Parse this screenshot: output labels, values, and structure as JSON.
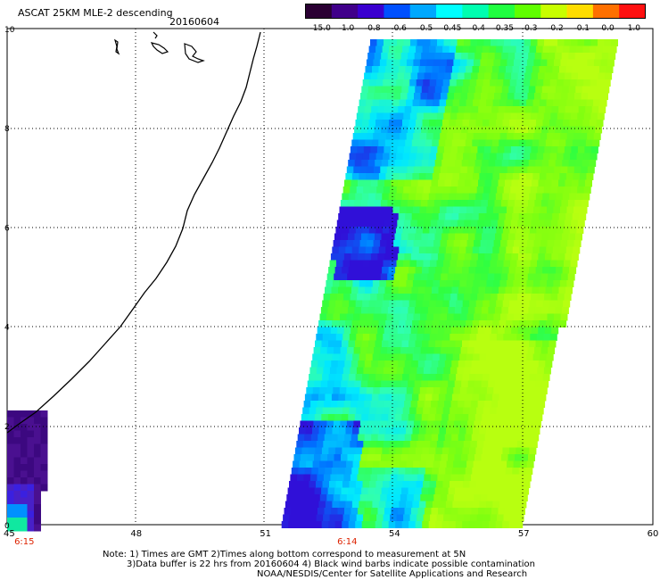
{
  "header": {
    "title": "ASCAT 25KM MLE-2 descending",
    "date": "20160604"
  },
  "colorbar": {
    "labels": [
      "-15.0",
      "-1.0",
      "-0.8",
      "-0.6",
      "-0.5",
      "-0.45",
      "-0.4",
      "-0.35",
      "-0.3",
      "-0.2",
      "-0.1",
      "0.0",
      "1.0"
    ],
    "colors": [
      "#2a0033",
      "#40008a",
      "#3a00d0",
      "#0050ff",
      "#00a8ff",
      "#00ffff",
      "#00ffb0",
      "#20ff40",
      "#60ff00",
      "#c8ff00",
      "#ffdc00",
      "#ff7000",
      "#ff1010"
    ]
  },
  "axes": {
    "x_ticks": [
      "45",
      "48",
      "51",
      "54",
      "57",
      "60"
    ],
    "y_ticks": [
      "0",
      "2",
      "4",
      "6",
      "8",
      "10"
    ],
    "x_range": [
      45,
      60
    ],
    "y_range": [
      0,
      10
    ]
  },
  "time_labels": [
    {
      "text": "6:15",
      "lon": 45.4
    },
    {
      "text": "6:14",
      "lon": 52.9
    }
  ],
  "notes": {
    "line1": "Note: 1) Times are GMT 2)Times along bottom correspond to measurement at 5N",
    "line2": "3)Data buffer is 22 hrs from 20160604 4) Black wind barbs indicate possible contamination",
    "line3": "NOAA/NESDIS/Center for Satellite Applications and Research"
  }
}
